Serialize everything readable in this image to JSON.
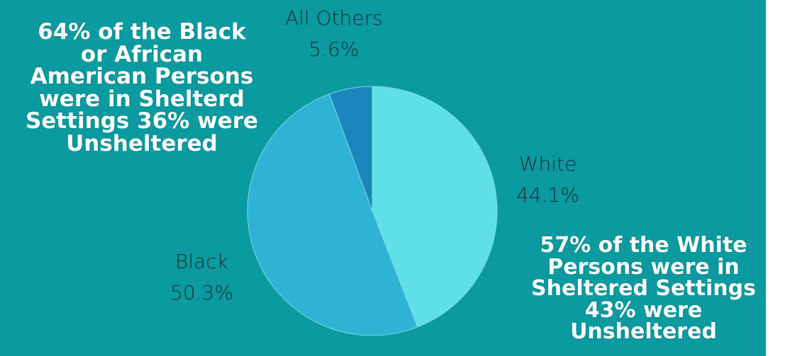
{
  "colors": {
    "background": "#0a9a9f",
    "slices": [
      "#5fe0e6",
      "#2eb3d6",
      "#1b86bd"
    ],
    "slice_stroke": "#7fd8dd"
  },
  "chart_data": {
    "type": "pie",
    "title": "",
    "start_angle_deg": 0,
    "direction": "clockwise",
    "slices": [
      {
        "name": "White",
        "value": 44.1,
        "value_label": "44.1%"
      },
      {
        "name": "Black",
        "value": 50.3,
        "value_label": "50.3%"
      },
      {
        "name": "All Others",
        "value": 5.6,
        "value_label": "5.6%"
      }
    ]
  },
  "annotations": {
    "black": "64% of the Black\nor African\nAmerican Persons\nwere in Shelterd\nSettings 36% were\nUnsheltered",
    "white": "57% of the White\nPersons were in\nSheltered Settings\n43% were\nUnsheltered"
  }
}
